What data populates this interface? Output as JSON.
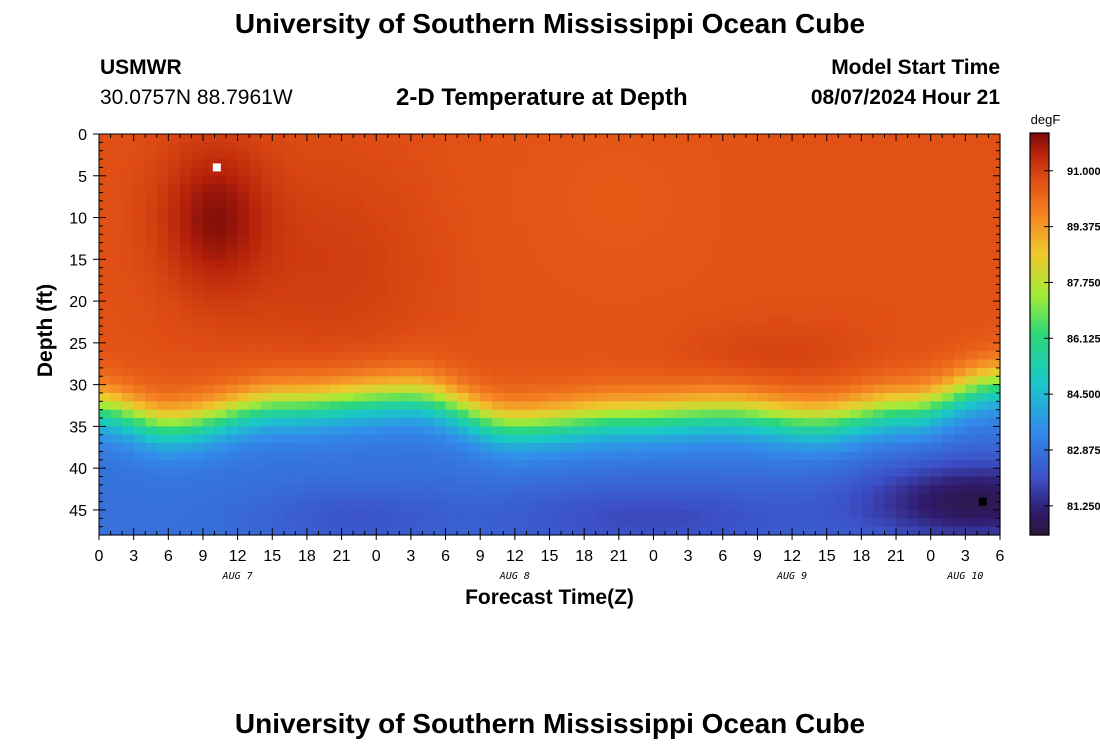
{
  "page": {
    "title_top": "University of Southern Mississippi Ocean Cube",
    "title_bottom": "University of Southern Mississippi Ocean Cube",
    "station": "USMWR",
    "coords": "30.0757N  88.7961W",
    "plot_title": "2-D Temperature at Depth",
    "model_start_label": "Model Start Time",
    "model_start_value": "08/07/2024 Hour 21"
  },
  "chart_data": {
    "type": "heatmap",
    "title": "2-D Temperature at Depth",
    "xlabel": "Forecast Time(Z)",
    "ylabel": "Depth (ft)",
    "units": "degF",
    "x_range_hours": [
      0,
      78
    ],
    "y_range_ft": [
      0,
      48
    ],
    "x_tick_labels": [
      "0",
      "3",
      "6",
      "9",
      "12",
      "15",
      "18",
      "21",
      "0",
      "3",
      "6",
      "9",
      "12",
      "15",
      "18",
      "21",
      "0",
      "3",
      "6",
      "9",
      "12",
      "15",
      "18",
      "21",
      "0",
      "3",
      "6"
    ],
    "y_ticks": [
      0,
      5,
      10,
      15,
      20,
      25,
      30,
      35,
      40,
      45
    ],
    "day_labels": [
      {
        "label": "AUG 7",
        "hour": 12
      },
      {
        "label": "AUG 8",
        "hour": 36
      },
      {
        "label": "AUG 9",
        "hour": 60
      },
      {
        "label": "AUG 10",
        "hour": 75
      }
    ],
    "colorbar": {
      "label": "degF",
      "ticks": [
        "91.000",
        "89.375",
        "87.750",
        "86.125",
        "84.500",
        "82.875",
        "81.250"
      ],
      "range": [
        80.4,
        92.1
      ]
    },
    "markers": [
      {
        "type": "max",
        "hour": 10.2,
        "depth": 4,
        "color": "#ffffff"
      },
      {
        "type": "min",
        "hour": 76.5,
        "depth": 44,
        "color": "#000000"
      }
    ],
    "field_description": {
      "surface_temp_degF": 90.7,
      "warm_core": {
        "hour": 10,
        "depth": 10,
        "value": 91.9
      },
      "thermocline_depth_ft": [
        {
          "hour": 0,
          "depth": 33
        },
        {
          "hour": 6,
          "depth": 35
        },
        {
          "hour": 16,
          "depth": 32.5
        },
        {
          "hour": 27,
          "depth": 31.5
        },
        {
          "hour": 36,
          "depth": 35
        },
        {
          "hour": 46,
          "depth": 34
        },
        {
          "hour": 54,
          "depth": 33.5
        },
        {
          "hour": 62,
          "depth": 34.5
        },
        {
          "hour": 70,
          "depth": 33
        },
        {
          "hour": 78,
          "depth": 30
        }
      ],
      "bottom_temp_degF": 82.8,
      "cold_core": {
        "hour": 76,
        "depth": 44,
        "value": 80.7
      }
    }
  }
}
